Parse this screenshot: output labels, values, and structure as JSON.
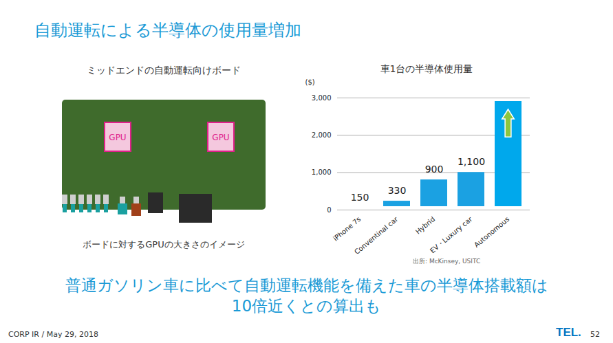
{
  "title": "自動運転による半導体の使用量増加",
  "board": {
    "label": "ミッドエンドの自動運転向けボード",
    "chips": [
      "GPU",
      "GPU"
    ],
    "caption": "ボードに対するGPUの大きさのイメージ"
  },
  "chart_data": {
    "type": "bar",
    "title": "車1台の半導体使用量",
    "y_label": "($)",
    "categories": [
      "iPhone 7s",
      "Conventinal car",
      "Hybrid",
      "EV・Luxury car",
      "Autonomous"
    ],
    "values": [
      150,
      330,
      900,
      1100,
      3000
    ],
    "value_labels": [
      "150",
      "330",
      "900",
      "1,100",
      null
    ],
    "data_labels": true,
    "colors": [
      "#8dc63f",
      "#1ba1e2",
      "#1ba1e2",
      "#1ba1e2",
      "#00a8ec"
    ],
    "ylim": [
      0,
      3000
    ],
    "yticks": [
      0,
      {
        "value": 1000,
        "label": "1,000"
      },
      {
        "value": 2000,
        "label": "2,000"
      },
      {
        "value": 3000,
        "label": "3,000"
      }
    ],
    "grid": true,
    "source": "出所: McKinsey, USITC"
  },
  "conclusion": "普通ガソリン車に比べて自動運転機能を備えた車の半導体搭載額は10倍近くとの算出も",
  "footer": {
    "left": "CORP IR / May 29, 2018",
    "logo": "TEL.",
    "page": "52"
  }
}
